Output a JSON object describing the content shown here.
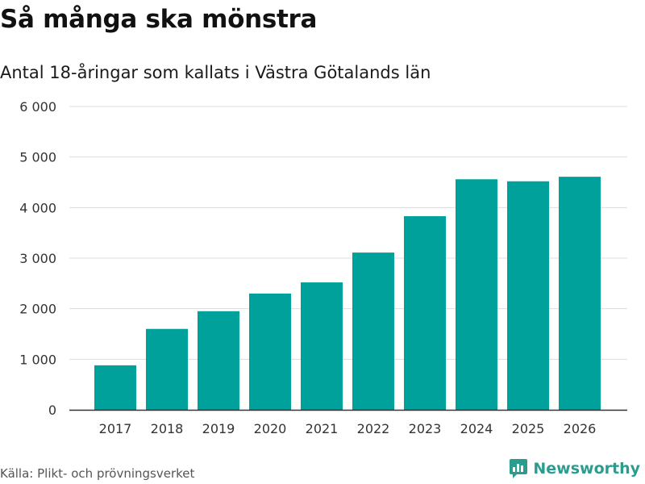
{
  "header": {
    "title": "Så många ska mönstra",
    "subtitle": "Antal 18-åringar som kallats i Västra Götalands län"
  },
  "footer": {
    "source": "Källa: Plikt- och prövningsverket",
    "brand": "Newsworthy",
    "brand_icon": "bar-chart-logo-icon"
  },
  "colors": {
    "bar": "#00a19a",
    "grid": "#dddddd",
    "axis": "#333333",
    "brand": "#2a9d8f"
  },
  "chart_data": {
    "type": "bar",
    "title": "Så många ska mönstra",
    "subtitle": "Antal 18-åringar som kallats i Västra Götalands län",
    "categories": [
      "2017",
      "2018",
      "2019",
      "2020",
      "2021",
      "2022",
      "2023",
      "2024",
      "2025",
      "2026"
    ],
    "values": [
      880,
      1600,
      1950,
      2300,
      2520,
      3110,
      3830,
      4560,
      4520,
      4610
    ],
    "xlabel": "",
    "ylabel": "",
    "ylim": [
      0,
      6000
    ],
    "yticks": [
      0,
      1000,
      2000,
      3000,
      4000,
      5000,
      6000
    ],
    "ytick_labels": [
      "0",
      "1 000",
      "2 000",
      "3 000",
      "4 000",
      "5 000",
      "6 000"
    ],
    "grid": true,
    "legend": "none"
  }
}
